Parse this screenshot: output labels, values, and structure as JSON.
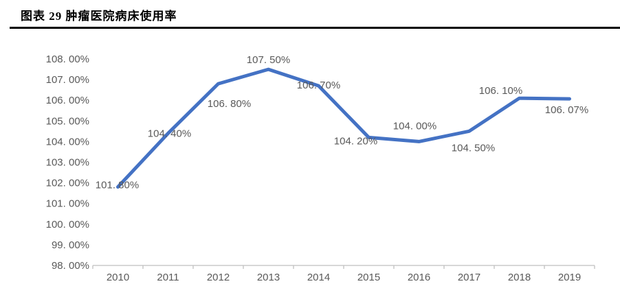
{
  "figure": {
    "title": "图表 29 肿瘤医院病床使用率"
  },
  "colors": {
    "line": "#4472C4",
    "axis": "#BFBFBF",
    "tick_text": "#595959",
    "data_label_text": "#595959",
    "title_text": "#000000",
    "background": "#FFFFFF"
  },
  "chart_data": {
    "type": "line",
    "title": "图表 29 肿瘤医院病床使用率",
    "categories": [
      "2010",
      "2011",
      "2012",
      "2013",
      "2014",
      "2015",
      "2016",
      "2017",
      "2018",
      "2019"
    ],
    "series": [
      {
        "name": "肿瘤医院病床使用率",
        "values": [
          101.8,
          104.4,
          106.8,
          107.5,
          106.7,
          104.2,
          104.0,
          104.5,
          106.1,
          106.07
        ]
      }
    ],
    "data_labels": [
      "101. 80%",
      "104. 40%",
      "106. 80%",
      "107. 50%",
      "106. 70%",
      "104. 20%",
      "104. 00%",
      "104. 50%",
      "106. 10%",
      "106. 07%"
    ],
    "y_tick_labels": [
      "98. 00%",
      "99. 00%",
      "100. 00%",
      "101. 00%",
      "102. 00%",
      "103. 00%",
      "104. 00%",
      "105. 00%",
      "106. 00%",
      "107. 00%",
      "108. 00%"
    ],
    "y_tick_values": [
      98,
      99,
      100,
      101,
      102,
      103,
      104,
      105,
      106,
      107,
      108
    ],
    "ylim": [
      98,
      108
    ],
    "xlabel": "",
    "ylabel": "",
    "grid": false,
    "legend_position": "none"
  }
}
